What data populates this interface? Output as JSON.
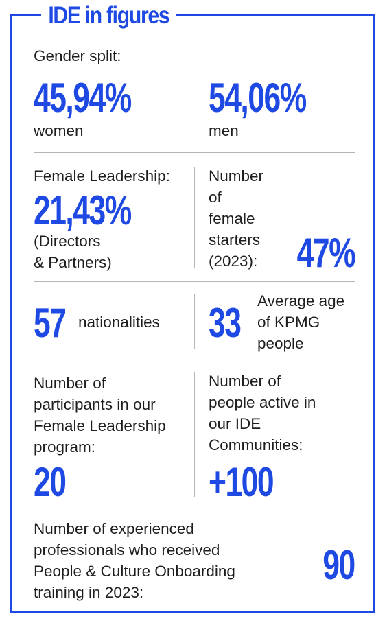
{
  "title": "IDE in figures",
  "gender": {
    "label": "Gender split:",
    "women_value": "45,94%",
    "women_label": "women",
    "men_value": "54,06%",
    "men_label": "men"
  },
  "leadership": {
    "label": "Female Leadership:",
    "value": "21,43%",
    "note_line1": "(Directors",
    "note_line2": "& Partners)"
  },
  "starters": {
    "label_lines": [
      "Number",
      "of",
      "female",
      "starters",
      "(2023):"
    ],
    "value": "47%"
  },
  "nationalities": {
    "value": "57",
    "label": "nationalities"
  },
  "age": {
    "value": "33",
    "label_lines": [
      "Average age",
      "of KPMG",
      "people"
    ]
  },
  "program": {
    "label_lines": [
      "Number of",
      "participants in our",
      "Female Leadership",
      "program:"
    ],
    "value": "20"
  },
  "communities": {
    "label_lines": [
      "Number of",
      "people active in",
      "our IDE",
      "Communities:"
    ],
    "value": "+100"
  },
  "onboarding": {
    "label_lines": [
      "Number of experienced",
      "professionals who received",
      "People & Culture Onboarding",
      "training in 2023:"
    ],
    "value": "90"
  },
  "colors": {
    "accent": "#1e49e2",
    "text": "#1e1e1e",
    "divider": "#b5b5b5"
  }
}
